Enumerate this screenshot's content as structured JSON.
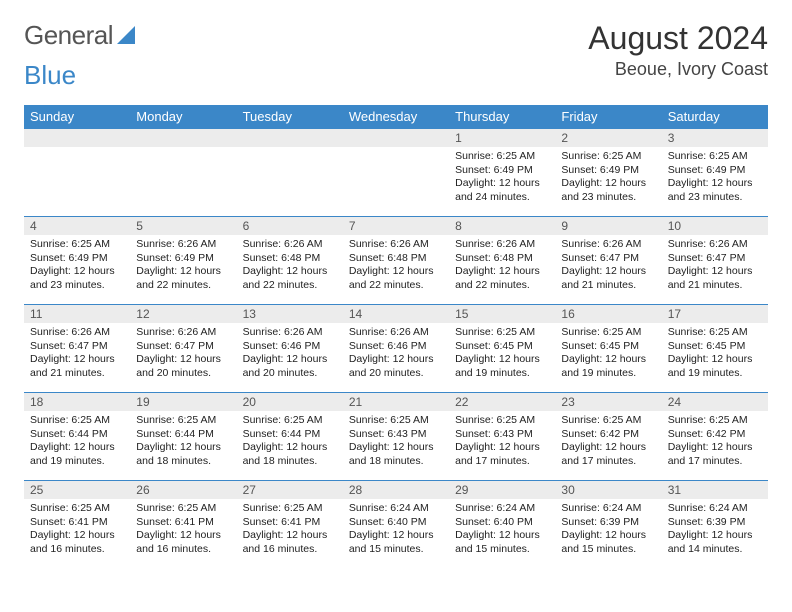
{
  "brand": {
    "part1": "General",
    "part2": "Blue"
  },
  "title": "August 2024",
  "location": "Beoue, Ivory Coast",
  "colors": {
    "header_bg": "#3b87c8",
    "header_text": "#ffffff",
    "daynum_bg": "#ececec",
    "cell_border": "#3b87c8",
    "body_text": "#222222",
    "page_bg": "#ffffff"
  },
  "weekdays": [
    "Sunday",
    "Monday",
    "Tuesday",
    "Wednesday",
    "Thursday",
    "Friday",
    "Saturday"
  ],
  "first_weekday_index": 4,
  "days": [
    {
      "n": 1,
      "sunrise": "6:25 AM",
      "sunset": "6:49 PM",
      "daylight": "12 hours and 24 minutes."
    },
    {
      "n": 2,
      "sunrise": "6:25 AM",
      "sunset": "6:49 PM",
      "daylight": "12 hours and 23 minutes."
    },
    {
      "n": 3,
      "sunrise": "6:25 AM",
      "sunset": "6:49 PM",
      "daylight": "12 hours and 23 minutes."
    },
    {
      "n": 4,
      "sunrise": "6:25 AM",
      "sunset": "6:49 PM",
      "daylight": "12 hours and 23 minutes."
    },
    {
      "n": 5,
      "sunrise": "6:26 AM",
      "sunset": "6:49 PM",
      "daylight": "12 hours and 22 minutes."
    },
    {
      "n": 6,
      "sunrise": "6:26 AM",
      "sunset": "6:48 PM",
      "daylight": "12 hours and 22 minutes."
    },
    {
      "n": 7,
      "sunrise": "6:26 AM",
      "sunset": "6:48 PM",
      "daylight": "12 hours and 22 minutes."
    },
    {
      "n": 8,
      "sunrise": "6:26 AM",
      "sunset": "6:48 PM",
      "daylight": "12 hours and 22 minutes."
    },
    {
      "n": 9,
      "sunrise": "6:26 AM",
      "sunset": "6:47 PM",
      "daylight": "12 hours and 21 minutes."
    },
    {
      "n": 10,
      "sunrise": "6:26 AM",
      "sunset": "6:47 PM",
      "daylight": "12 hours and 21 minutes."
    },
    {
      "n": 11,
      "sunrise": "6:26 AM",
      "sunset": "6:47 PM",
      "daylight": "12 hours and 21 minutes."
    },
    {
      "n": 12,
      "sunrise": "6:26 AM",
      "sunset": "6:47 PM",
      "daylight": "12 hours and 20 minutes."
    },
    {
      "n": 13,
      "sunrise": "6:26 AM",
      "sunset": "6:46 PM",
      "daylight": "12 hours and 20 minutes."
    },
    {
      "n": 14,
      "sunrise": "6:26 AM",
      "sunset": "6:46 PM",
      "daylight": "12 hours and 20 minutes."
    },
    {
      "n": 15,
      "sunrise": "6:25 AM",
      "sunset": "6:45 PM",
      "daylight": "12 hours and 19 minutes."
    },
    {
      "n": 16,
      "sunrise": "6:25 AM",
      "sunset": "6:45 PM",
      "daylight": "12 hours and 19 minutes."
    },
    {
      "n": 17,
      "sunrise": "6:25 AM",
      "sunset": "6:45 PM",
      "daylight": "12 hours and 19 minutes."
    },
    {
      "n": 18,
      "sunrise": "6:25 AM",
      "sunset": "6:44 PM",
      "daylight": "12 hours and 19 minutes."
    },
    {
      "n": 19,
      "sunrise": "6:25 AM",
      "sunset": "6:44 PM",
      "daylight": "12 hours and 18 minutes."
    },
    {
      "n": 20,
      "sunrise": "6:25 AM",
      "sunset": "6:44 PM",
      "daylight": "12 hours and 18 minutes."
    },
    {
      "n": 21,
      "sunrise": "6:25 AM",
      "sunset": "6:43 PM",
      "daylight": "12 hours and 18 minutes."
    },
    {
      "n": 22,
      "sunrise": "6:25 AM",
      "sunset": "6:43 PM",
      "daylight": "12 hours and 17 minutes."
    },
    {
      "n": 23,
      "sunrise": "6:25 AM",
      "sunset": "6:42 PM",
      "daylight": "12 hours and 17 minutes."
    },
    {
      "n": 24,
      "sunrise": "6:25 AM",
      "sunset": "6:42 PM",
      "daylight": "12 hours and 17 minutes."
    },
    {
      "n": 25,
      "sunrise": "6:25 AM",
      "sunset": "6:41 PM",
      "daylight": "12 hours and 16 minutes."
    },
    {
      "n": 26,
      "sunrise": "6:25 AM",
      "sunset": "6:41 PM",
      "daylight": "12 hours and 16 minutes."
    },
    {
      "n": 27,
      "sunrise": "6:25 AM",
      "sunset": "6:41 PM",
      "daylight": "12 hours and 16 minutes."
    },
    {
      "n": 28,
      "sunrise": "6:24 AM",
      "sunset": "6:40 PM",
      "daylight": "12 hours and 15 minutes."
    },
    {
      "n": 29,
      "sunrise": "6:24 AM",
      "sunset": "6:40 PM",
      "daylight": "12 hours and 15 minutes."
    },
    {
      "n": 30,
      "sunrise": "6:24 AM",
      "sunset": "6:39 PM",
      "daylight": "12 hours and 15 minutes."
    },
    {
      "n": 31,
      "sunrise": "6:24 AM",
      "sunset": "6:39 PM",
      "daylight": "12 hours and 14 minutes."
    }
  ],
  "labels": {
    "sunrise": "Sunrise:",
    "sunset": "Sunset:",
    "daylight": "Daylight:"
  }
}
